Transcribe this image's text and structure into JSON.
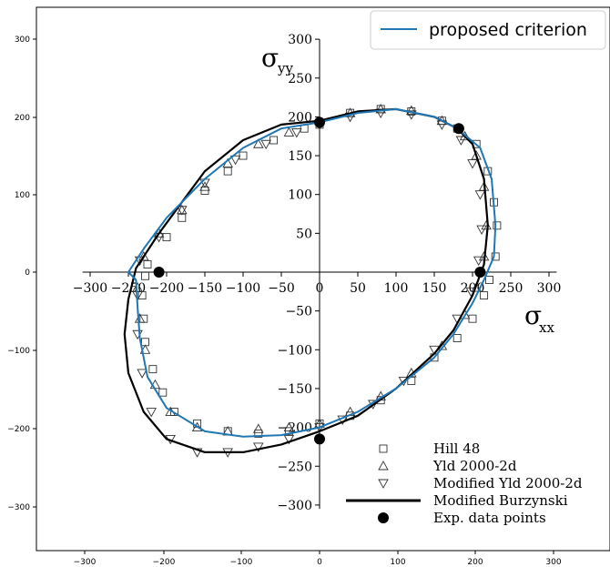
{
  "chart_data": {
    "type": "scatter",
    "xlabel": "σ",
    "xlabel_sub": "xx",
    "ylabel": "σ",
    "ylabel_sub": "yy",
    "outer_axes": {
      "xlim": [
        -360,
        370
      ],
      "ylim": [
        -355,
        345
      ],
      "xticks": [
        "−300",
        "−200",
        "−100",
        "0",
        "100",
        "200",
        "300"
      ],
      "yticks": [
        "300",
        "200",
        "100",
        "0",
        "−100",
        "−200",
        "−300"
      ]
    },
    "inner_axes": {
      "xticks": [
        "−300",
        "−250",
        "−200",
        "−150",
        "−100",
        "−50",
        "0",
        "50",
        "100",
        "150",
        "200",
        "250",
        "300"
      ],
      "yticks": [
        "300",
        "250",
        "200",
        "150",
        "100",
        "50",
        "0",
        "−50",
        "−100",
        "−150",
        "−200",
        "−250",
        "−300"
      ]
    },
    "legend_top": {
      "position": "top-right",
      "entries": [
        {
          "label": "proposed criterion",
          "color": "#1f77b4"
        }
      ]
    },
    "legend_bottom": {
      "position": "lower-right",
      "entries": [
        {
          "label": "Hill 48",
          "marker": "square"
        },
        {
          "label": "Yld 2000-2d",
          "marker": "triangle-up"
        },
        {
          "label": "Modified Yld 2000-2d",
          "marker": "triangle-down"
        },
        {
          "label": "Modified Burzynski",
          "marker": "line"
        },
        {
          "label": "Exp. data points",
          "marker": "filled-circle"
        }
      ]
    },
    "series": [
      {
        "name": "Exp. data points",
        "x": [
          -210,
          0,
          182,
          210,
          0
        ],
        "y": [
          0,
          193,
          185,
          0,
          -215
        ]
      },
      {
        "name": "proposed criterion",
        "x": [
          -250,
          -230,
          -200,
          -150,
          -100,
          -50,
          0,
          50,
          100,
          150,
          180,
          210,
          225,
          230,
          228,
          215,
          200,
          175,
          150,
          100,
          50,
          0,
          -50,
          -100,
          -150,
          -200,
          -225,
          -235,
          -238,
          -240,
          -250
        ],
        "y": [
          0,
          30,
          70,
          120,
          160,
          185,
          193,
          205,
          210,
          200,
          185,
          160,
          120,
          60,
          20,
          -10,
          -40,
          -80,
          -110,
          -150,
          -180,
          -200,
          -210,
          -212,
          -205,
          -175,
          -135,
          -85,
          -45,
          -10,
          0
        ]
      },
      {
        "name": "Modified Burzynski",
        "x": [
          -240,
          -210,
          -180,
          -150,
          -100,
          -50,
          0,
          50,
          100,
          150,
          180,
          200,
          215,
          220,
          215,
          200,
          175,
          150,
          100,
          50,
          0,
          -50,
          -100,
          -150,
          -200,
          -230,
          -250,
          -255,
          -250,
          -240
        ],
        "y": [
          5,
          50,
          90,
          130,
          170,
          190,
          195,
          207,
          210,
          200,
          185,
          165,
          120,
          60,
          10,
          -30,
          -75,
          -105,
          -150,
          -185,
          -205,
          -222,
          -232,
          -232,
          -215,
          -180,
          -130,
          -80,
          -35,
          5
        ]
      },
      {
        "name": "Hill 48",
        "x": [
          -225,
          -200,
          -180,
          -150,
          -120,
          -100,
          -60,
          -20,
          0,
          40,
          80,
          120,
          160,
          180,
          205,
          220,
          228,
          232,
          230,
          222,
          215,
          200,
          180,
          150,
          120,
          80,
          40,
          0,
          -40,
          -80,
          -120,
          -160,
          -190,
          -205,
          -218,
          -228,
          -230,
          -232,
          -228
        ],
        "y": [
          10,
          45,
          70,
          105,
          130,
          150,
          170,
          185,
          190,
          205,
          210,
          207,
          195,
          185,
          165,
          130,
          90,
          60,
          20,
          -10,
          -30,
          -60,
          -85,
          -110,
          -140,
          -165,
          -185,
          -195,
          -205,
          -208,
          -205,
          -195,
          -180,
          -155,
          -125,
          -90,
          -60,
          -30,
          -5
        ]
      },
      {
        "name": "Yld 2000-2d",
        "x": [
          -230,
          -210,
          -180,
          -150,
          -120,
          -80,
          -40,
          0,
          40,
          80,
          120,
          160,
          190,
          205,
          215,
          218,
          215,
          205,
          190,
          160,
          120,
          80,
          40,
          0,
          -40,
          -80,
          -120,
          -160,
          -195,
          -215,
          -228,
          -235,
          -238
        ],
        "y": [
          20,
          50,
          80,
          110,
          140,
          165,
          180,
          195,
          205,
          210,
          208,
          195,
          175,
          150,
          110,
          60,
          20,
          -20,
          -55,
          -95,
          -130,
          -160,
          -180,
          -195,
          -200,
          -202,
          -205,
          -200,
          -180,
          -145,
          -100,
          -60,
          -20
        ]
      },
      {
        "name": "Modified Yld 2000-2d",
        "x": [
          -235,
          -210,
          -180,
          -150,
          -110,
          -70,
          -30,
          0,
          40,
          80,
          120,
          160,
          185,
          200,
          210,
          212,
          208,
          198,
          180,
          150,
          110,
          70,
          30,
          0,
          -40,
          -80,
          -120,
          -160,
          -195,
          -220,
          -232,
          -238,
          -238
        ],
        "y": [
          15,
          45,
          80,
          115,
          145,
          165,
          180,
          190,
          200,
          205,
          203,
          190,
          170,
          140,
          100,
          55,
          15,
          -25,
          -60,
          -100,
          -140,
          -170,
          -190,
          -200,
          -215,
          -225,
          -232,
          -232,
          -215,
          -180,
          -130,
          -80,
          -30
        ]
      }
    ]
  }
}
